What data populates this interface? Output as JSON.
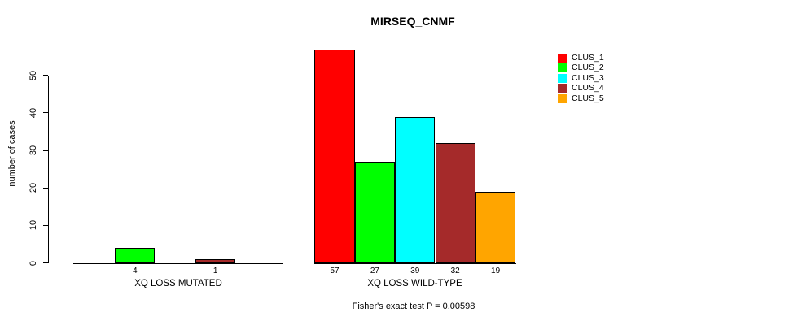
{
  "title": "MIRSEQ_CNMF",
  "ylabel": "number of cases",
  "subtitle": "Fisher's exact test P = 0.00598",
  "chart_data": {
    "type": "bar",
    "title": "MIRSEQ_CNMF",
    "xlabel": "",
    "ylabel": "number of cases",
    "ylim": [
      0,
      57
    ],
    "yticks": [
      0,
      10,
      20,
      30,
      40,
      50
    ],
    "grid": false,
    "legend_position": "top-right",
    "series": [
      "CLUS_1",
      "CLUS_2",
      "CLUS_3",
      "CLUS_4",
      "CLUS_5"
    ],
    "colors": [
      "#ff0000",
      "#00ff00",
      "#00ffff",
      "#a52a2a",
      "#ffa500"
    ],
    "groups": [
      {
        "label": "XQ LOSS MUTATED",
        "values": [
          0,
          4,
          0,
          1,
          0
        ]
      },
      {
        "label": "XQ LOSS WILD-TYPE",
        "values": [
          57,
          27,
          39,
          32,
          19
        ]
      }
    ],
    "annotation": "Fisher's exact test P = 0.00598"
  }
}
